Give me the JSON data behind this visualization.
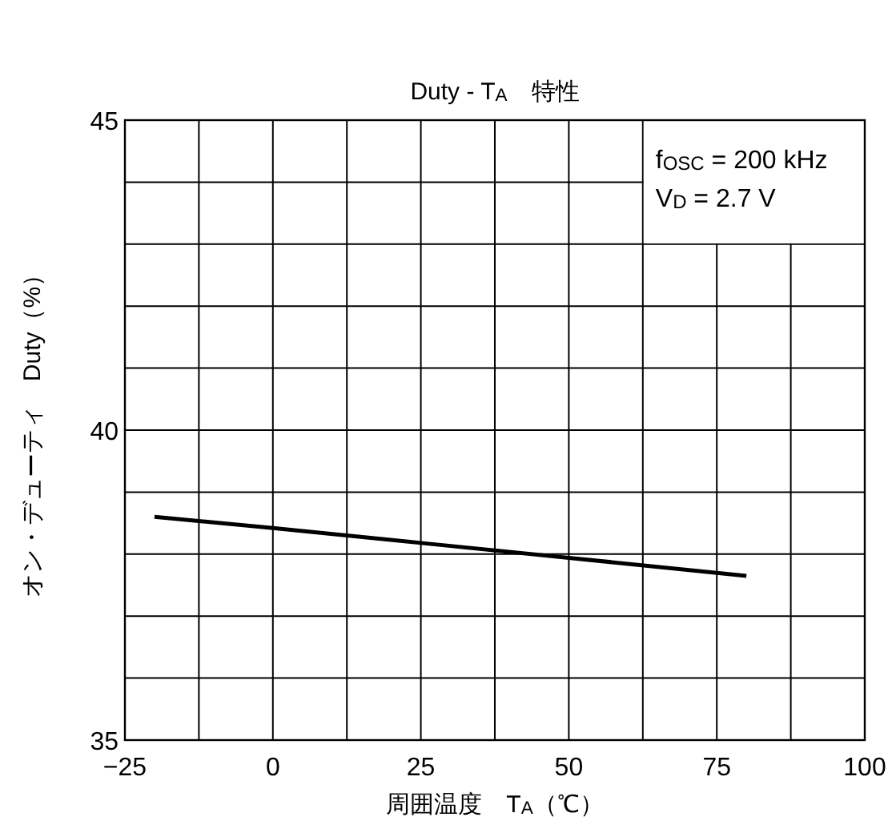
{
  "chart_data": {
    "type": "line",
    "title": "Duty - T$_{A}$　特性",
    "xlabel": "周囲温度　T$_{A}$（℃）",
    "ylabel": "オン・デューティ　Duty（%）",
    "annotations": [
      "f$_{OSC}$ = 200 kHz",
      "V$_{D}$ = 2.7 V"
    ],
    "x": [
      -20,
      0,
      25,
      50,
      80
    ],
    "series": [
      {
        "color": "#000000",
        "values": [
          38.6,
          38.42,
          38.18,
          37.94,
          37.65
        ]
      }
    ],
    "xlim": [
      -25,
      100
    ],
    "xticks": [
      {
        "value": -25,
        "label": "−25"
      },
      {
        "value": -12.5,
        "label": null
      },
      0,
      {
        "value": 12.5,
        "label": null
      },
      25,
      {
        "value": 37.5,
        "label": null
      },
      50,
      {
        "value": 62.5,
        "label": null
      },
      75,
      {
        "value": 87.5,
        "label": null
      },
      100
    ],
    "ylim": [
      35,
      45
    ],
    "yticks": [
      35,
      {
        "value": 36,
        "label": null
      },
      {
        "value": 37,
        "label": null
      },
      {
        "value": 38,
        "label": null
      },
      {
        "value": 39,
        "label": null
      },
      40,
      {
        "value": 41,
        "label": null
      },
      {
        "value": 42,
        "label": null
      },
      {
        "value": 43,
        "label": null
      },
      {
        "value": 44,
        "label": null
      },
      45
    ],
    "grid": true,
    "marker": "none",
    "line_style": "solid"
  }
}
